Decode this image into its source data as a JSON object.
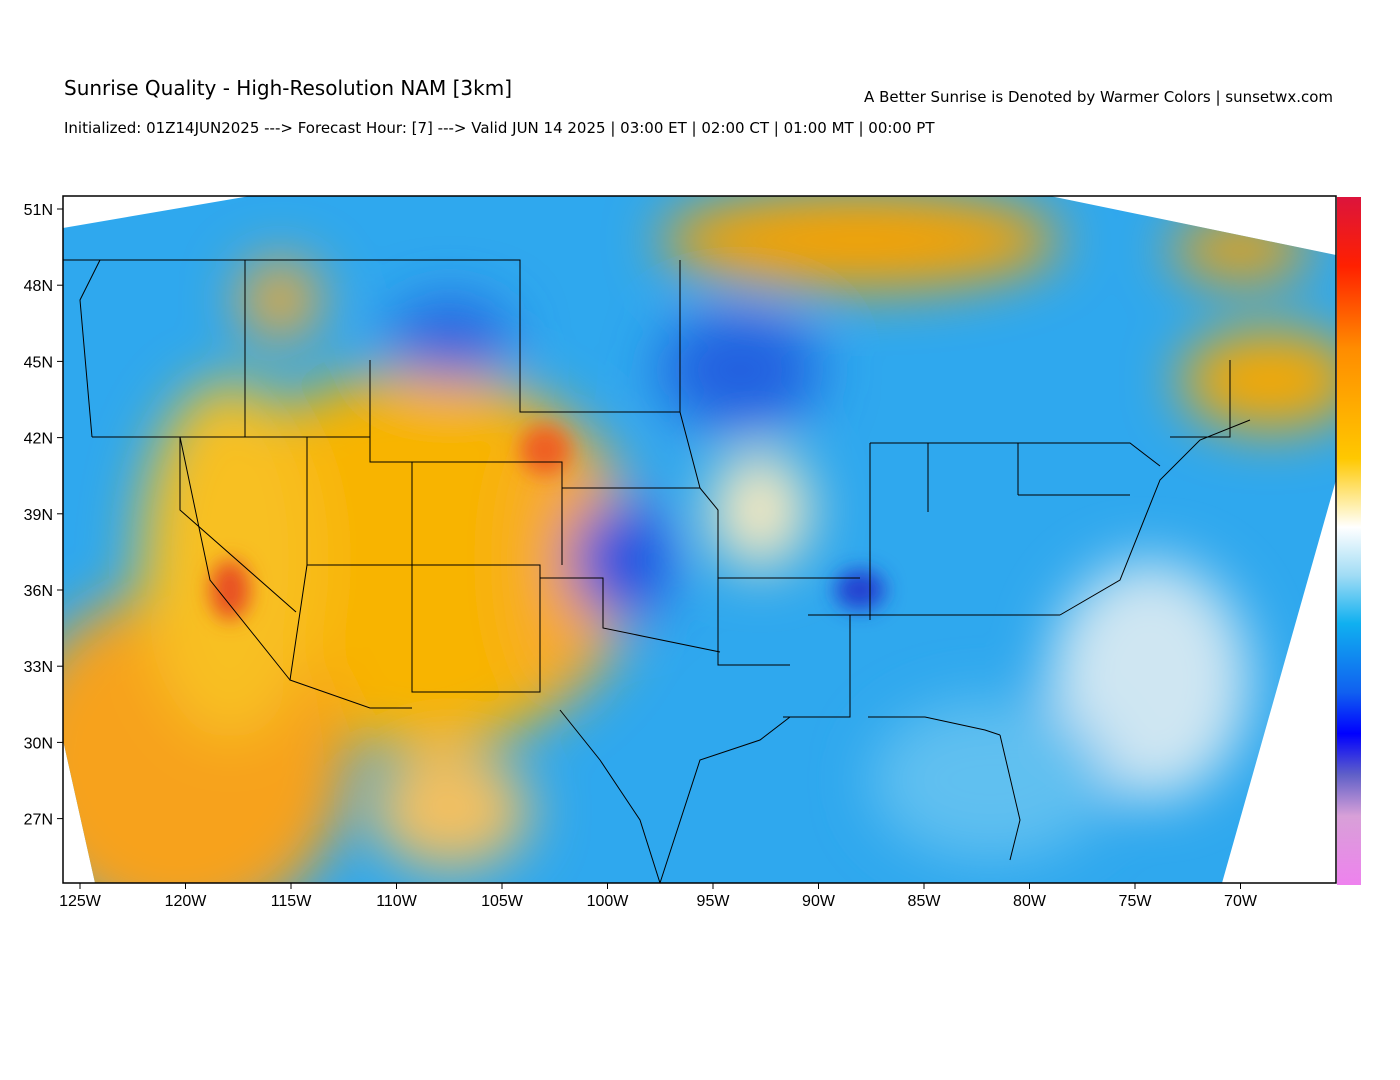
{
  "header": {
    "title": "Sunrise Quality - High-Resolution NAM [3km]",
    "subtitle": "Initialized: 01Z14JUN2025 ---> Forecast Hour: [7] ---> Valid JUN 14 2025 | 03:00 ET | 02:00 CT | 01:00 MT | 00:00 PT",
    "note": "A Better Sunrise is Denoted by Warmer Colors | sunsetwx.com"
  },
  "map": {
    "lat_labels": [
      "51N",
      "48N",
      "45N",
      "42N",
      "39N",
      "36N",
      "33N",
      "30N",
      "27N"
    ],
    "lon_labels": [
      "125W",
      "120W",
      "115W",
      "110W",
      "105W",
      "100W",
      "95W",
      "90W",
      "85W",
      "80W",
      "75W",
      "70W"
    ]
  }
}
